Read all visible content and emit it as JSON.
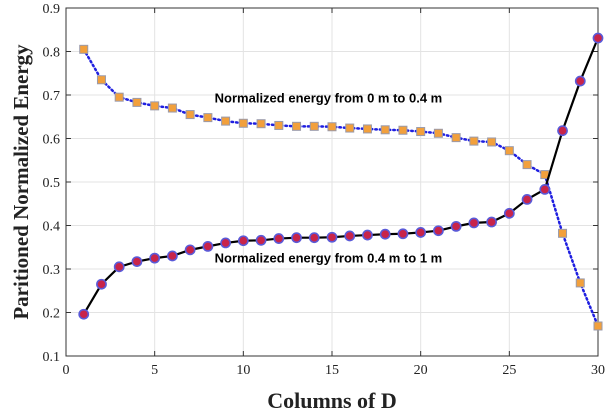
{
  "chart_data": {
    "type": "line",
    "xlabel": "Columns of D",
    "ylabel": "Paritioned Normalized Energy",
    "xlim": [
      0,
      30
    ],
    "ylim": [
      0.1,
      0.9
    ],
    "xticks": [
      0,
      5,
      10,
      15,
      20,
      25,
      30
    ],
    "yticks": [
      0.1,
      0.2,
      0.3,
      0.4,
      0.5,
      0.6,
      0.7,
      0.8,
      0.9
    ],
    "xtick_labels": [
      "0",
      "5",
      "10",
      "15",
      "20",
      "25",
      "30"
    ],
    "ytick_labels": [
      "0.1",
      "0.2",
      "0.3",
      "0.4",
      "0.5",
      "0.6",
      "0.7",
      "0.8",
      "0.9"
    ],
    "grid": true,
    "x": [
      1,
      2,
      3,
      4,
      5,
      6,
      7,
      8,
      9,
      10,
      11,
      12,
      13,
      14,
      15,
      16,
      17,
      18,
      19,
      20,
      21,
      22,
      23,
      24,
      25,
      26,
      27,
      28,
      29,
      30
    ],
    "series": [
      {
        "values": [
          0.805,
          0.735,
          0.695,
          0.683,
          0.675,
          0.67,
          0.655,
          0.648,
          0.64,
          0.635,
          0.634,
          0.63,
          0.628,
          0.628,
          0.627,
          0.624,
          0.622,
          0.62,
          0.619,
          0.616,
          0.612,
          0.602,
          0.594,
          0.592,
          0.572,
          0.54,
          0.517,
          0.382,
          0.268,
          0.169
        ],
        "color": "#1f1fe0",
        "line_style": "dotted",
        "marker_face": "#f2a03c",
        "marker_edge": "#9a9aaa",
        "marker": "square"
      },
      {
        "values": [
          0.196,
          0.265,
          0.305,
          0.317,
          0.325,
          0.33,
          0.344,
          0.352,
          0.36,
          0.365,
          0.366,
          0.37,
          0.372,
          0.372,
          0.373,
          0.376,
          0.378,
          0.38,
          0.381,
          0.384,
          0.388,
          0.398,
          0.406,
          0.408,
          0.428,
          0.46,
          0.483,
          0.618,
          0.732,
          0.831
        ],
        "color": "#000000",
        "line_style": "solid",
        "marker_face": "#c8244a",
        "marker_edge": "#5a5ad8",
        "marker": "circle"
      }
    ],
    "annotations": [
      {
        "text": "Normalized energy from 0 m to 0.4 m",
        "x": 14.8,
        "y": 0.683
      },
      {
        "text": "Normalized energy from 0.4 m to 1 m",
        "x": 14.8,
        "y": 0.315
      }
    ]
  }
}
